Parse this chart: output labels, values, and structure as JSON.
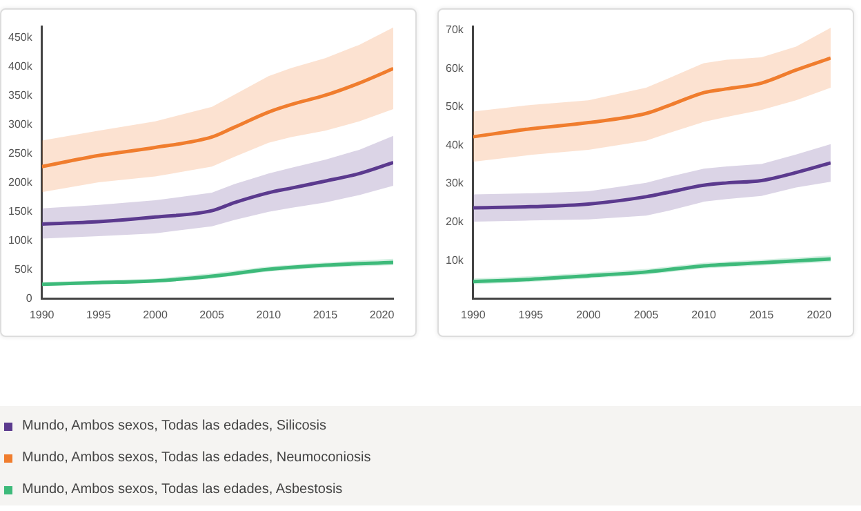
{
  "chart_data": [
    {
      "type": "line",
      "legend": "bottom",
      "xlim": [
        1990,
        2021
      ],
      "ylim": [
        0,
        470000
      ],
      "xticks": [
        1990,
        1995,
        2000,
        2005,
        2010,
        2015,
        2020
      ],
      "yticks": [
        0,
        {
          "value": 50000,
          "label": "50k"
        },
        {
          "value": 100000,
          "label": "100k"
        },
        {
          "value": 150000,
          "label": "150k"
        },
        {
          "value": 200000,
          "label": "200k"
        },
        {
          "value": 250000,
          "label": "250k"
        },
        {
          "value": 300000,
          "label": "300k"
        },
        {
          "value": 350000,
          "label": "350k"
        },
        {
          "value": 400000,
          "label": "400k"
        },
        {
          "value": 450000,
          "label": "450k"
        }
      ],
      "series": [
        {
          "name": "Mundo, Ambos sexos, Todas las edades, Silicosis",
          "color": "#5b3a8e",
          "x": [
            1990,
            1995,
            2000,
            2005,
            2007,
            2010,
            2012,
            2015,
            2018,
            2021
          ],
          "values": [
            129000,
            133000,
            141000,
            152000,
            166000,
            183000,
            191000,
            203000,
            216000,
            235000
          ],
          "upper": [
            156000,
            162000,
            170000,
            183000,
            198000,
            216000,
            226000,
            240000,
            257000,
            281000
          ],
          "lower": [
            104000,
            108000,
            113000,
            125000,
            136000,
            150000,
            157000,
            166000,
            179000,
            195000
          ]
        },
        {
          "name": "Mundo, Ambos sexos, Todas las edades, Neumoconiosis",
          "color": "#f07d2e",
          "x": [
            1990,
            1995,
            2000,
            2005,
            2007,
            2010,
            2012,
            2015,
            2018,
            2021
          ],
          "values": [
            228000,
            247000,
            261000,
            279000,
            296000,
            322000,
            335000,
            351000,
            372000,
            397000
          ],
          "upper": [
            273000,
            290000,
            306000,
            331000,
            352000,
            384000,
            398000,
            415000,
            438000,
            468000
          ],
          "lower": [
            184000,
            201000,
            211000,
            228000,
            245000,
            269000,
            279000,
            290000,
            306000,
            327000
          ]
        },
        {
          "name": "Mundo, Ambos sexos, Todas las edades, Asbestosis",
          "color": "#3dba7a",
          "x": [
            1990,
            1995,
            2000,
            2005,
            2010,
            2015,
            2021
          ],
          "values": [
            25000,
            28000,
            31000,
            39000,
            51000,
            58000,
            63000
          ],
          "upper": [
            29000,
            32000,
            35000,
            44000,
            56000,
            63000,
            69000
          ],
          "lower": [
            22000,
            25000,
            28000,
            35000,
            47000,
            54000,
            58000
          ]
        }
      ]
    },
    {
      "type": "line",
      "xlim": [
        1990,
        2021
      ],
      "ylim": [
        0,
        71000
      ],
      "xticks": [
        1990,
        1995,
        2000,
        2005,
        2010,
        2015,
        2020
      ],
      "yticks": [
        {
          "value": 10000,
          "label": "10k"
        },
        {
          "value": 20000,
          "label": "20k"
        },
        {
          "value": 30000,
          "label": "30k"
        },
        {
          "value": 40000,
          "label": "40k"
        },
        {
          "value": 50000,
          "label": "50k"
        },
        {
          "value": 60000,
          "label": "60k"
        },
        {
          "value": 70000,
          "label": "70k"
        }
      ],
      "series": [
        {
          "color": "#5b3a8e",
          "x": [
            1990,
            1995,
            2000,
            2005,
            2007,
            2010,
            2012,
            2015,
            2018,
            2021
          ],
          "values": [
            23700,
            24000,
            24700,
            26600,
            27800,
            29600,
            30200,
            30800,
            32900,
            35400
          ],
          "upper": [
            27200,
            27500,
            28000,
            30200,
            31800,
            33900,
            34500,
            35100,
            37600,
            40300
          ],
          "lower": [
            20100,
            20400,
            20700,
            21700,
            23000,
            25300,
            26000,
            26800,
            29000,
            30500
          ]
        },
        {
          "color": "#f07d2e",
          "x": [
            1990,
            1995,
            2000,
            2005,
            2007,
            2010,
            2012,
            2015,
            2018,
            2021
          ],
          "values": [
            42200,
            44300,
            45900,
            48300,
            50400,
            53700,
            54700,
            56200,
            59600,
            62700
          ],
          "upper": [
            48800,
            50500,
            51700,
            55000,
            57500,
            61400,
            62300,
            62900,
            65700,
            70600
          ],
          "lower": [
            35700,
            37500,
            38800,
            41200,
            43200,
            46100,
            47400,
            49200,
            51700,
            55000
          ]
        },
        {
          "color": "#3dba7a",
          "x": [
            1990,
            1995,
            2000,
            2005,
            2010,
            2015,
            2021
          ],
          "values": [
            4500,
            5100,
            6000,
            7000,
            8600,
            9400,
            10400
          ],
          "upper": [
            5300,
            5900,
            6800,
            7800,
            9400,
            10200,
            11300
          ],
          "lower": [
            3800,
            4400,
            5300,
            6300,
            7900,
            8700,
            9600
          ]
        }
      ]
    }
  ]
}
